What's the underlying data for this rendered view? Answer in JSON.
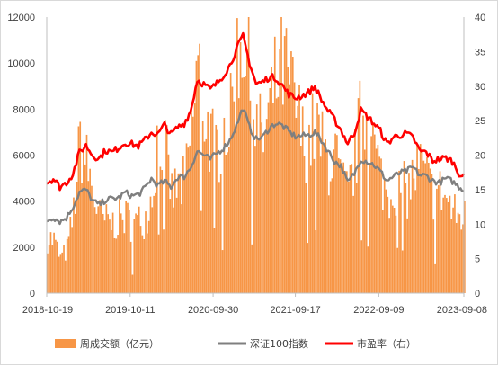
{
  "chart_data": {
    "type": "bar-line-combo",
    "title": "",
    "xlabel": "",
    "ylabel": "",
    "x_range": [
      "2018-10-19",
      "2023-09-08"
    ],
    "x_ticks": [
      "2018-10-19",
      "2019-10-11",
      "2020-09-30",
      "2021-09-17",
      "2022-09-09",
      "2023-09-08"
    ],
    "y_left": {
      "range": [
        0,
        12000
      ],
      "ticks": [
        "0",
        "2000",
        "4000",
        "6000",
        "8000",
        "10000",
        "12000"
      ]
    },
    "y_right": {
      "range": [
        0,
        40
      ],
      "ticks": [
        "0",
        "5",
        "10",
        "15",
        "20",
        "25",
        "30",
        "35",
        "40"
      ]
    },
    "legend_position": "bottom",
    "grid": false,
    "series": [
      {
        "name": "周成交额（亿元）",
        "kind": "bar",
        "axis": "left",
        "color": "#F79646",
        "points": [
          [
            "2018-10-19",
            2400
          ],
          [
            "2018-11-16",
            2300
          ],
          [
            "2018-12-14",
            1500
          ],
          [
            "2019-01-11",
            1900
          ],
          [
            "2019-02-08",
            3500
          ],
          [
            "2019-03-08",
            6600
          ],
          [
            "2019-04-05",
            5600
          ],
          [
            "2019-05-03",
            4300
          ],
          [
            "2019-05-31",
            3300
          ],
          [
            "2019-06-28",
            3100
          ],
          [
            "2019-07-26",
            3000
          ],
          [
            "2019-08-23",
            3200
          ],
          [
            "2019-09-20",
            3300
          ],
          [
            "2019-10-18",
            3000
          ],
          [
            "2019-11-15",
            3100
          ],
          [
            "2019-12-13",
            3300
          ],
          [
            "2020-01-10",
            4300
          ],
          [
            "2020-02-07",
            7300
          ],
          [
            "2020-03-06",
            6200
          ],
          [
            "2020-04-03",
            4300
          ],
          [
            "2020-05-01",
            4600
          ],
          [
            "2020-05-29",
            4700
          ],
          [
            "2020-06-26",
            7000
          ],
          [
            "2020-07-24",
            10000
          ],
          [
            "2020-08-21",
            7900
          ],
          [
            "2020-09-18",
            6600
          ],
          [
            "2020-10-16",
            6300
          ],
          [
            "2020-11-13",
            7200
          ],
          [
            "2020-12-11",
            7500
          ],
          [
            "2021-01-08",
            10200
          ],
          [
            "2021-02-05",
            11500
          ],
          [
            "2021-03-05",
            8800
          ],
          [
            "2021-04-02",
            7100
          ],
          [
            "2021-04-30",
            6700
          ],
          [
            "2021-05-28",
            7900
          ],
          [
            "2021-06-25",
            9200
          ],
          [
            "2021-07-23",
            9800
          ],
          [
            "2021-08-20",
            8900
          ],
          [
            "2021-09-17",
            8100
          ],
          [
            "2021-10-15",
            6700
          ],
          [
            "2021-11-12",
            6600
          ],
          [
            "2021-12-10",
            7300
          ],
          [
            "2022-01-07",
            6300
          ],
          [
            "2022-02-04",
            5700
          ],
          [
            "2022-03-04",
            5900
          ],
          [
            "2022-04-01",
            4700
          ],
          [
            "2022-04-29",
            4300
          ],
          [
            "2022-05-27",
            5700
          ],
          [
            "2022-06-24",
            7900
          ],
          [
            "2022-07-22",
            7700
          ],
          [
            "2022-08-19",
            6200
          ],
          [
            "2022-09-16",
            5000
          ],
          [
            "2022-10-14",
            4200
          ],
          [
            "2022-11-11",
            4700
          ],
          [
            "2022-12-09",
            4600
          ],
          [
            "2023-01-06",
            4400
          ],
          [
            "2023-02-03",
            5100
          ],
          [
            "2023-03-03",
            5500
          ],
          [
            "2023-03-31",
            4900
          ],
          [
            "2023-04-28",
            4300
          ],
          [
            "2023-05-26",
            4400
          ],
          [
            "2023-06-23",
            4100
          ],
          [
            "2023-07-21",
            3500
          ],
          [
            "2023-08-18",
            3300
          ],
          [
            "2023-09-08",
            3300
          ]
        ]
      },
      {
        "name": "深证100指数",
        "kind": "line",
        "axis": "right",
        "color": "#7F7F7F",
        "points": [
          [
            "2018-10-19",
            10.5
          ],
          [
            "2018-11-16",
            11.0
          ],
          [
            "2018-12-14",
            10.4
          ],
          [
            "2019-01-11",
            10.9
          ],
          [
            "2019-02-08",
            12.5
          ],
          [
            "2019-03-08",
            14.6
          ],
          [
            "2019-04-05",
            15.0
          ],
          [
            "2019-05-03",
            13.4
          ],
          [
            "2019-05-31",
            12.8
          ],
          [
            "2019-06-28",
            13.5
          ],
          [
            "2019-07-26",
            13.7
          ],
          [
            "2019-08-23",
            13.8
          ],
          [
            "2019-09-20",
            14.6
          ],
          [
            "2019-10-18",
            14.1
          ],
          [
            "2019-11-15",
            14.3
          ],
          [
            "2019-12-13",
            15.2
          ],
          [
            "2020-01-10",
            16.6
          ],
          [
            "2020-02-07",
            15.6
          ],
          [
            "2020-03-06",
            16.2
          ],
          [
            "2020-04-03",
            15.4
          ],
          [
            "2020-05-01",
            16.8
          ],
          [
            "2020-05-29",
            16.9
          ],
          [
            "2020-06-26",
            18.2
          ],
          [
            "2020-07-24",
            20.6
          ],
          [
            "2020-08-21",
            20.0
          ],
          [
            "2020-09-18",
            19.4
          ],
          [
            "2020-10-16",
            20.3
          ],
          [
            "2020-11-13",
            21.0
          ],
          [
            "2020-12-11",
            22.2
          ],
          [
            "2021-01-08",
            24.3
          ],
          [
            "2021-02-05",
            26.9
          ],
          [
            "2021-03-05",
            24.0
          ],
          [
            "2021-04-02",
            22.3
          ],
          [
            "2021-04-30",
            22.6
          ],
          [
            "2021-05-28",
            23.9
          ],
          [
            "2021-06-25",
            24.6
          ],
          [
            "2021-07-23",
            24.3
          ],
          [
            "2021-08-20",
            23.4
          ],
          [
            "2021-09-17",
            22.7
          ],
          [
            "2021-10-15",
            22.8
          ],
          [
            "2021-11-12",
            22.9
          ],
          [
            "2021-12-10",
            23.3
          ],
          [
            "2022-01-07",
            22.1
          ],
          [
            "2022-02-04",
            20.6
          ],
          [
            "2022-03-04",
            19.1
          ],
          [
            "2022-04-01",
            18.4
          ],
          [
            "2022-04-29",
            16.0
          ],
          [
            "2022-05-27",
            17.3
          ],
          [
            "2022-06-24",
            19.4
          ],
          [
            "2022-07-22",
            19.1
          ],
          [
            "2022-08-19",
            18.6
          ],
          [
            "2022-09-16",
            17.6
          ],
          [
            "2022-10-14",
            16.3
          ],
          [
            "2022-11-11",
            16.9
          ],
          [
            "2022-12-09",
            17.4
          ],
          [
            "2023-01-06",
            17.7
          ],
          [
            "2023-02-03",
            18.2
          ],
          [
            "2023-03-03",
            17.1
          ],
          [
            "2023-03-31",
            17.0
          ],
          [
            "2023-04-28",
            16.3
          ],
          [
            "2023-05-26",
            16.0
          ],
          [
            "2023-06-23",
            16.6
          ],
          [
            "2023-07-21",
            16.2
          ],
          [
            "2023-08-18",
            15.4
          ],
          [
            "2023-09-08",
            15.0
          ]
        ]
      },
      {
        "name": "市盈率（右）",
        "kind": "line",
        "axis": "right",
        "color": "#FF0000",
        "points": [
          [
            "2018-10-19",
            16.0
          ],
          [
            "2018-11-16",
            16.6
          ],
          [
            "2018-12-14",
            15.4
          ],
          [
            "2019-01-11",
            16.0
          ],
          [
            "2019-02-08",
            17.3
          ],
          [
            "2019-03-08",
            20.4
          ],
          [
            "2019-04-05",
            21.4
          ],
          [
            "2019-05-03",
            20.0
          ],
          [
            "2019-05-31",
            19.5
          ],
          [
            "2019-06-28",
            20.7
          ],
          [
            "2019-07-26",
            20.4
          ],
          [
            "2019-08-23",
            21.1
          ],
          [
            "2019-09-20",
            21.8
          ],
          [
            "2019-10-18",
            21.6
          ],
          [
            "2019-11-15",
            21.3
          ],
          [
            "2019-12-13",
            22.2
          ],
          [
            "2020-01-10",
            23.3
          ],
          [
            "2020-02-07",
            23.0
          ],
          [
            "2020-03-06",
            24.4
          ],
          [
            "2020-04-03",
            23.0
          ],
          [
            "2020-05-01",
            24.0
          ],
          [
            "2020-05-29",
            24.6
          ],
          [
            "2020-06-26",
            26.4
          ],
          [
            "2020-07-24",
            30.9
          ],
          [
            "2020-08-21",
            30.3
          ],
          [
            "2020-09-18",
            29.5
          ],
          [
            "2020-10-16",
            30.4
          ],
          [
            "2020-11-13",
            31.6
          ],
          [
            "2020-12-11",
            33.0
          ],
          [
            "2021-01-08",
            35.4
          ],
          [
            "2021-02-05",
            37.2
          ],
          [
            "2021-03-05",
            33.4
          ],
          [
            "2021-04-02",
            30.3
          ],
          [
            "2021-04-30",
            30.6
          ],
          [
            "2021-05-28",
            31.3
          ],
          [
            "2021-06-25",
            31.2
          ],
          [
            "2021-07-23",
            30.1
          ],
          [
            "2021-08-20",
            28.8
          ],
          [
            "2021-09-17",
            28.3
          ],
          [
            "2021-10-15",
            28.6
          ],
          [
            "2021-11-12",
            29.1
          ],
          [
            "2021-12-10",
            29.9
          ],
          [
            "2022-01-07",
            28.0
          ],
          [
            "2022-02-04",
            26.4
          ],
          [
            "2022-03-04",
            25.1
          ],
          [
            "2022-04-01",
            23.6
          ],
          [
            "2022-04-29",
            21.7
          ],
          [
            "2022-05-27",
            23.2
          ],
          [
            "2022-06-24",
            26.5
          ],
          [
            "2022-07-22",
            25.6
          ],
          [
            "2022-08-19",
            24.6
          ],
          [
            "2022-09-16",
            23.5
          ],
          [
            "2022-10-14",
            21.6
          ],
          [
            "2022-11-11",
            22.6
          ],
          [
            "2022-12-09",
            22.9
          ],
          [
            "2023-01-06",
            23.1
          ],
          [
            "2023-02-03",
            22.5
          ],
          [
            "2023-03-03",
            20.6
          ],
          [
            "2023-03-31",
            20.4
          ],
          [
            "2023-04-28",
            19.2
          ],
          [
            "2023-05-26",
            19.4
          ],
          [
            "2023-06-23",
            19.6
          ],
          [
            "2023-07-21",
            19.1
          ],
          [
            "2023-08-18",
            17.4
          ],
          [
            "2023-09-08",
            16.8
          ]
        ]
      }
    ]
  }
}
